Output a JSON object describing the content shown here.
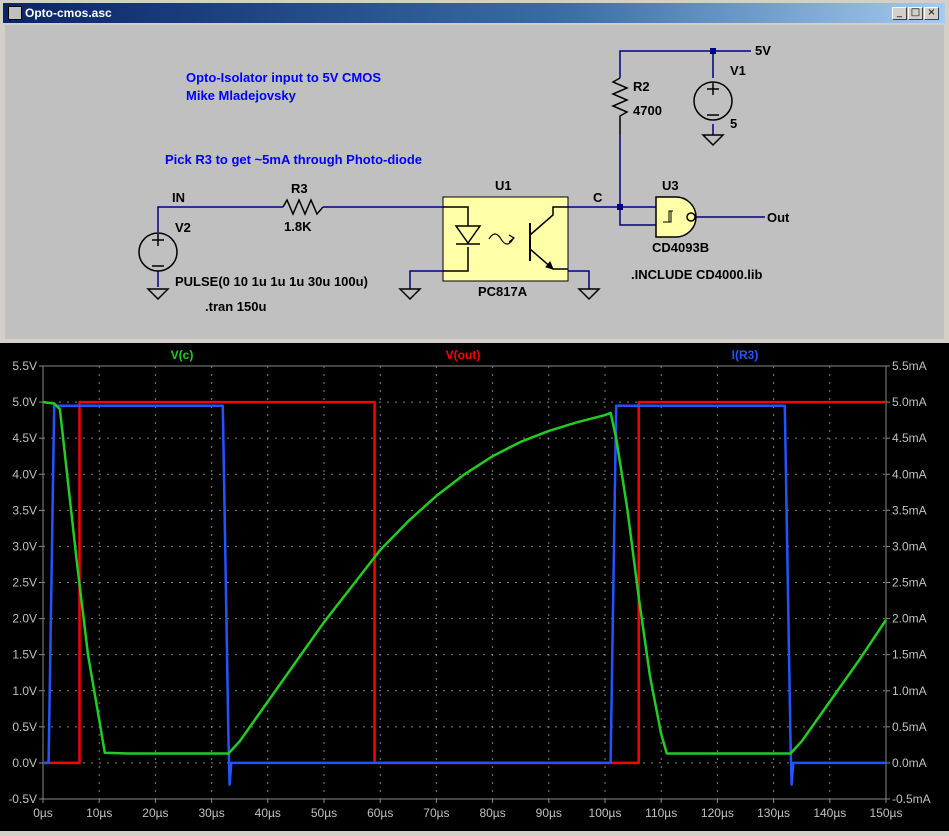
{
  "window": {
    "title": "Opto-cmos.asc",
    "min_label": "_",
    "max_label": "□",
    "close_label": "×"
  },
  "schematic": {
    "comment_1": "Opto-Isolator input to 5V CMOS",
    "comment_2": "Mike Mladejovsky",
    "comment_3": "Pick R3 to get ~5mA through Photo-diode",
    "net_in": "IN",
    "net_c": "C",
    "net_5v": "5V",
    "net_out": "Out",
    "r3_name": "R3",
    "r3_value": "1.8K",
    "r2_name": "R2",
    "r2_value": "4700",
    "v1_name": "V1",
    "v1_value": "5",
    "v2_name": "V2",
    "v2_value": "PULSE(0 10 1u 1u 1u 30u 100u)",
    "tran": ".tran 150u",
    "u1_name": "U1",
    "u1_model": "PC817A",
    "u3_name": "U3",
    "u3_model": "CD4093B",
    "include": ".INCLUDE CD4000.lib"
  },
  "colors": {
    "vc": "#22cc22",
    "vout": "#ff0000",
    "ir3": "#2255ff",
    "wire": "#000080",
    "text_blue": "#0000ff"
  },
  "chart_data": {
    "type": "line",
    "x_unit": "µs",
    "xlim": [
      0,
      150
    ],
    "x_ticks": [
      "0µs",
      "10µs",
      "20µs",
      "30µs",
      "40µs",
      "50µs",
      "60µs",
      "70µs",
      "80µs",
      "90µs",
      "100µs",
      "110µs",
      "120µs",
      "130µs",
      "140µs",
      "150µs"
    ],
    "y_left_lim": [
      -0.5,
      5.5
    ],
    "y_left_ticks": [
      "-0.5V",
      "0.0V",
      "0.5V",
      "1.0V",
      "1.5V",
      "2.0V",
      "2.5V",
      "3.0V",
      "3.5V",
      "4.0V",
      "4.5V",
      "5.0V",
      "5.5V"
    ],
    "y_right_lim": [
      -0.5,
      5.5
    ],
    "y_right_ticks": [
      "-0.5mA",
      "0.0mA",
      "0.5mA",
      "1.0mA",
      "1.5mA",
      "2.0mA",
      "2.5mA",
      "3.0mA",
      "3.5mA",
      "4.0mA",
      "4.5mA",
      "5.0mA",
      "5.5mA"
    ],
    "grid": true,
    "series": [
      {
        "name": "V(c)",
        "axis": "left",
        "color": "#22cc22",
        "x": [
          0,
          2,
          3,
          4,
          6,
          8,
          10,
          11,
          15,
          20,
          25,
          30,
          33,
          35,
          40,
          45,
          50,
          55,
          60,
          65,
          70,
          75,
          80,
          85,
          90,
          95,
          100,
          101,
          102,
          104,
          106,
          108,
          110,
          111,
          115,
          120,
          125,
          130,
          133,
          135,
          140,
          145,
          150
        ],
        "y": [
          5.0,
          4.98,
          4.9,
          4.2,
          2.8,
          1.5,
          0.6,
          0.14,
          0.13,
          0.13,
          0.13,
          0.13,
          0.13,
          0.3,
          0.85,
          1.4,
          1.95,
          2.45,
          2.95,
          3.35,
          3.7,
          4.0,
          4.25,
          4.45,
          4.6,
          4.72,
          4.82,
          4.85,
          4.5,
          3.5,
          2.3,
          1.2,
          0.4,
          0.13,
          0.13,
          0.13,
          0.13,
          0.13,
          0.13,
          0.3,
          0.85,
          1.4,
          1.98
        ]
      },
      {
        "name": "V(out)",
        "axis": "left",
        "color": "#ff0000",
        "x": [
          0,
          6.5,
          6.5,
          59,
          59,
          106,
          106,
          150
        ],
        "y": [
          0,
          0,
          5.0,
          5.0,
          0,
          0,
          5.0,
          5.0
        ]
      },
      {
        "name": "I(R3)",
        "axis": "right",
        "color": "#2255ff",
        "x": [
          0,
          1,
          2,
          3,
          32,
          33,
          33.2,
          33.5,
          101,
          102,
          103,
          132,
          133,
          133.2,
          133.5,
          150
        ],
        "y": [
          0,
          0,
          4.95,
          4.95,
          4.95,
          0.3,
          -0.3,
          0,
          0,
          4.95,
          4.95,
          4.95,
          0.3,
          -0.3,
          0,
          0
        ]
      }
    ]
  }
}
